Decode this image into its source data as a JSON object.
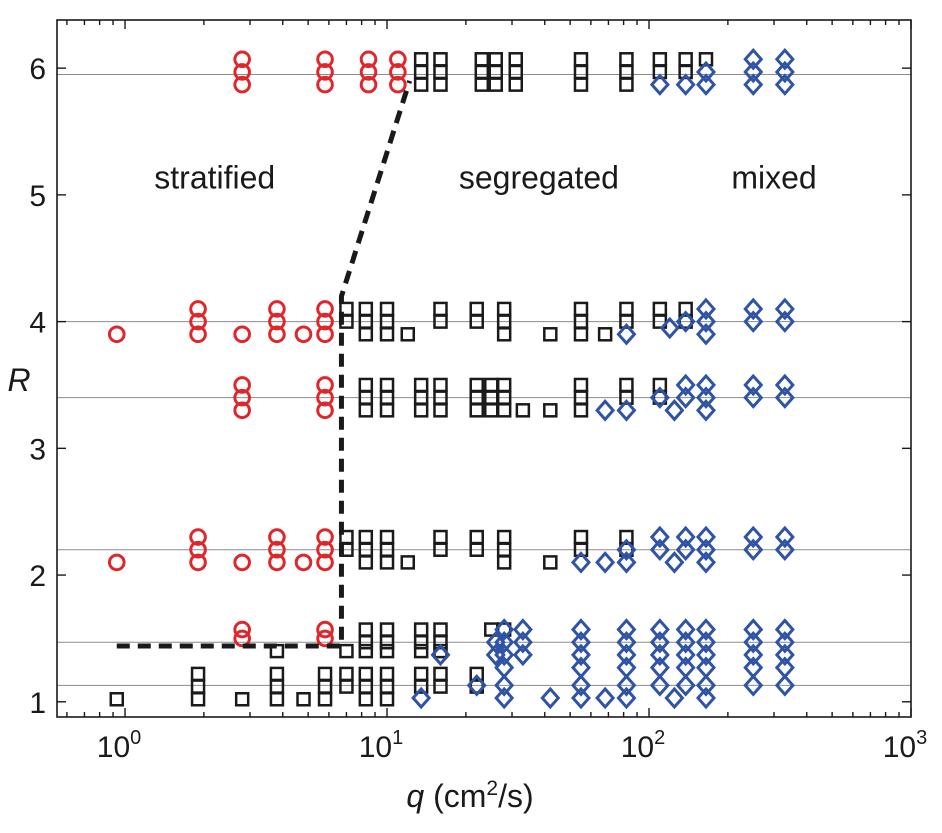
{
  "chart_data": {
    "type": "scatter",
    "x_scale": "log",
    "xlim": [
      0.55,
      1000
    ],
    "ylim": [
      0.88,
      6.38
    ],
    "x_ticks": [
      1,
      10,
      100,
      1000
    ],
    "x_tick_labels": [
      {
        "base": "10",
        "exp": "0"
      },
      {
        "base": "10",
        "exp": "1"
      },
      {
        "base": "10",
        "exp": "2"
      },
      {
        "base": "10",
        "exp": "3"
      }
    ],
    "y_ticks": [
      1,
      2,
      3,
      4,
      5,
      6
    ],
    "y_tick_labels": [
      "1",
      "2",
      "3",
      "4",
      "5",
      "6"
    ],
    "xlabel": {
      "var": "q",
      "unit_open": " (cm",
      "unit_sup": "2",
      "unit_close": "/s)"
    },
    "ylabel": "R",
    "reference_lines_y": [
      1.13,
      1.47,
      2.2,
      3.4,
      4.0,
      5.95
    ],
    "boundary_line": [
      [
        0.93,
        1.44
      ],
      [
        6.3,
        1.44
      ],
      [
        6.7,
        1.44
      ],
      [
        6.7,
        4.2
      ],
      [
        12.2,
        5.9
      ]
    ],
    "colors": {
      "stratified": "#e0262b",
      "segregated": "#1a1a1a",
      "mixed": "#2f53a6"
    },
    "regions": [
      {
        "label": "stratified",
        "x": 2.2,
        "y": 5.05
      },
      {
        "label": "segregated",
        "x": 38,
        "y": 5.05
      },
      {
        "label": "mixed",
        "x": 300,
        "y": 5.05
      }
    ],
    "series": [
      {
        "name": "stratified",
        "marker": "circle",
        "points": [
          [
            2.8,
            6.07
          ],
          [
            2.8,
            5.97
          ],
          [
            2.8,
            5.87
          ],
          [
            5.8,
            6.07
          ],
          [
            5.8,
            5.97
          ],
          [
            5.8,
            5.87
          ],
          [
            8.5,
            6.07
          ],
          [
            8.5,
            5.97
          ],
          [
            8.5,
            5.87
          ],
          [
            11,
            6.07
          ],
          [
            11,
            5.97
          ],
          [
            11,
            5.87
          ],
          [
            0.93,
            3.9
          ],
          [
            1.9,
            4.1
          ],
          [
            1.9,
            4.0
          ],
          [
            1.9,
            3.9
          ],
          [
            2.8,
            3.9
          ],
          [
            3.8,
            4.1
          ],
          [
            3.8,
            4.0
          ],
          [
            3.8,
            3.9
          ],
          [
            4.8,
            3.9
          ],
          [
            5.8,
            4.1
          ],
          [
            5.8,
            4.0
          ],
          [
            5.8,
            3.9
          ],
          [
            2.8,
            3.5
          ],
          [
            2.8,
            3.4
          ],
          [
            2.8,
            3.3
          ],
          [
            5.8,
            3.5
          ],
          [
            5.8,
            3.4
          ],
          [
            5.8,
            3.3
          ],
          [
            0.93,
            2.1
          ],
          [
            1.9,
            2.3
          ],
          [
            1.9,
            2.2
          ],
          [
            1.9,
            2.1
          ],
          [
            2.8,
            2.1
          ],
          [
            3.8,
            2.3
          ],
          [
            3.8,
            2.2
          ],
          [
            3.8,
            2.1
          ],
          [
            4.8,
            2.1
          ],
          [
            5.8,
            2.3
          ],
          [
            5.8,
            2.2
          ],
          [
            5.8,
            2.1
          ],
          [
            2.8,
            1.57
          ],
          [
            2.8,
            1.5
          ],
          [
            5.8,
            1.57
          ],
          [
            5.8,
            1.5
          ]
        ]
      },
      {
        "name": "segregated",
        "marker": "square",
        "points": [
          [
            13.5,
            6.07
          ],
          [
            13.5,
            5.97
          ],
          [
            13.5,
            5.87
          ],
          [
            16,
            6.07
          ],
          [
            16,
            5.97
          ],
          [
            16,
            5.87
          ],
          [
            23,
            6.07
          ],
          [
            23,
            5.97
          ],
          [
            23,
            5.87
          ],
          [
            26,
            6.07
          ],
          [
            26,
            5.97
          ],
          [
            26,
            5.87
          ],
          [
            31,
            6.07
          ],
          [
            31,
            5.97
          ],
          [
            31,
            5.87
          ],
          [
            55,
            6.07
          ],
          [
            55,
            5.97
          ],
          [
            55,
            5.87
          ],
          [
            82,
            6.07
          ],
          [
            82,
            5.97
          ],
          [
            82,
            5.87
          ],
          [
            110,
            6.07
          ],
          [
            110,
            5.97
          ],
          [
            138,
            6.07
          ],
          [
            138,
            5.97
          ],
          [
            165,
            6.07
          ],
          [
            7,
            4.1
          ],
          [
            7,
            4.0
          ],
          [
            8.3,
            4.1
          ],
          [
            8.3,
            4.0
          ],
          [
            8.3,
            3.9
          ],
          [
            10,
            4.1
          ],
          [
            10,
            4.0
          ],
          [
            10,
            3.9
          ],
          [
            12,
            3.9
          ],
          [
            16,
            4.1
          ],
          [
            16,
            4.0
          ],
          [
            22,
            4.1
          ],
          [
            22,
            4.0
          ],
          [
            28,
            4.1
          ],
          [
            28,
            4.0
          ],
          [
            28,
            3.9
          ],
          [
            42,
            3.9
          ],
          [
            55,
            4.1
          ],
          [
            55,
            4.0
          ],
          [
            55,
            3.9
          ],
          [
            68,
            3.9
          ],
          [
            82,
            4.1
          ],
          [
            82,
            4.0
          ],
          [
            110,
            4.1
          ],
          [
            110,
            4.0
          ],
          [
            138,
            4.1
          ],
          [
            138,
            4.0
          ],
          [
            8.3,
            3.5
          ],
          [
            8.3,
            3.4
          ],
          [
            8.3,
            3.3
          ],
          [
            10,
            3.5
          ],
          [
            10,
            3.4
          ],
          [
            10,
            3.3
          ],
          [
            13.5,
            3.5
          ],
          [
            13.5,
            3.4
          ],
          [
            13.5,
            3.3
          ],
          [
            16,
            3.5
          ],
          [
            16,
            3.4
          ],
          [
            16,
            3.3
          ],
          [
            22,
            3.5
          ],
          [
            22,
            3.4
          ],
          [
            22,
            3.3
          ],
          [
            25,
            3.5
          ],
          [
            25,
            3.4
          ],
          [
            25,
            3.3
          ],
          [
            28,
            3.5
          ],
          [
            28,
            3.4
          ],
          [
            28,
            3.3
          ],
          [
            33,
            3.3
          ],
          [
            42,
            3.3
          ],
          [
            55,
            3.5
          ],
          [
            55,
            3.4
          ],
          [
            55,
            3.3
          ],
          [
            82,
            3.5
          ],
          [
            82,
            3.4
          ],
          [
            110,
            3.5
          ],
          [
            110,
            3.4
          ],
          [
            7,
            2.3
          ],
          [
            7,
            2.2
          ],
          [
            8.3,
            2.3
          ],
          [
            8.3,
            2.2
          ],
          [
            8.3,
            2.1
          ],
          [
            10,
            2.3
          ],
          [
            10,
            2.2
          ],
          [
            10,
            2.1
          ],
          [
            12,
            2.1
          ],
          [
            16,
            2.3
          ],
          [
            16,
            2.2
          ],
          [
            22,
            2.3
          ],
          [
            22,
            2.2
          ],
          [
            28,
            2.3
          ],
          [
            28,
            2.2
          ],
          [
            28,
            2.1
          ],
          [
            42,
            2.1
          ],
          [
            55,
            2.3
          ],
          [
            55,
            2.2
          ],
          [
            82,
            2.3
          ],
          [
            82,
            2.2
          ],
          [
            3.8,
            1.4
          ],
          [
            7,
            1.4
          ],
          [
            8.3,
            1.57
          ],
          [
            8.3,
            1.47
          ],
          [
            8.3,
            1.4
          ],
          [
            10,
            1.57
          ],
          [
            10,
            1.47
          ],
          [
            10,
            1.4
          ],
          [
            13.5,
            1.57
          ],
          [
            13.5,
            1.47
          ],
          [
            13.5,
            1.4
          ],
          [
            16,
            1.57
          ],
          [
            16,
            1.47
          ],
          [
            16,
            1.4
          ],
          [
            25,
            1.57
          ],
          [
            28,
            1.57
          ],
          [
            0.93,
            1.02
          ],
          [
            1.9,
            1.22
          ],
          [
            1.9,
            1.12
          ],
          [
            1.9,
            1.02
          ],
          [
            2.8,
            1.02
          ],
          [
            3.8,
            1.22
          ],
          [
            3.8,
            1.12
          ],
          [
            3.8,
            1.02
          ],
          [
            4.8,
            1.02
          ],
          [
            5.8,
            1.22
          ],
          [
            5.8,
            1.12
          ],
          [
            5.8,
            1.02
          ],
          [
            7,
            1.22
          ],
          [
            7,
            1.12
          ],
          [
            8.3,
            1.22
          ],
          [
            8.3,
            1.12
          ],
          [
            8.3,
            1.02
          ],
          [
            10,
            1.22
          ],
          [
            10,
            1.12
          ],
          [
            10,
            1.02
          ],
          [
            13.5,
            1.22
          ],
          [
            13.5,
            1.12
          ],
          [
            16,
            1.22
          ],
          [
            16,
            1.12
          ],
          [
            22,
            1.22
          ],
          [
            22,
            1.12
          ]
        ]
      },
      {
        "name": "mixed",
        "marker": "diamond",
        "points": [
          [
            110,
            5.87
          ],
          [
            138,
            5.87
          ],
          [
            165,
            5.97
          ],
          [
            165,
            5.87
          ],
          [
            250,
            6.07
          ],
          [
            250,
            5.97
          ],
          [
            250,
            5.87
          ],
          [
            330,
            6.07
          ],
          [
            330,
            5.97
          ],
          [
            330,
            5.87
          ],
          [
            82,
            3.9
          ],
          [
            120,
            3.95
          ],
          [
            138,
            4.0
          ],
          [
            165,
            4.1
          ],
          [
            165,
            4.0
          ],
          [
            165,
            3.9
          ],
          [
            250,
            4.1
          ],
          [
            250,
            4.0
          ],
          [
            330,
            4.1
          ],
          [
            330,
            4.0
          ],
          [
            68,
            3.3
          ],
          [
            82,
            3.3
          ],
          [
            110,
            3.4
          ],
          [
            125,
            3.3
          ],
          [
            138,
            3.5
          ],
          [
            138,
            3.4
          ],
          [
            165,
            3.5
          ],
          [
            165,
            3.4
          ],
          [
            165,
            3.3
          ],
          [
            250,
            3.5
          ],
          [
            250,
            3.4
          ],
          [
            330,
            3.5
          ],
          [
            330,
            3.4
          ],
          [
            55,
            2.1
          ],
          [
            68,
            2.1
          ],
          [
            82,
            2.2
          ],
          [
            82,
            2.1
          ],
          [
            110,
            2.3
          ],
          [
            110,
            2.2
          ],
          [
            125,
            2.1
          ],
          [
            138,
            2.3
          ],
          [
            138,
            2.2
          ],
          [
            165,
            2.3
          ],
          [
            165,
            2.2
          ],
          [
            165,
            2.1
          ],
          [
            250,
            2.3
          ],
          [
            250,
            2.2
          ],
          [
            330,
            2.3
          ],
          [
            330,
            2.2
          ],
          [
            28,
            1.57
          ],
          [
            33,
            1.57
          ],
          [
            26,
            1.47
          ],
          [
            28,
            1.47
          ],
          [
            33,
            1.47
          ],
          [
            16,
            1.37
          ],
          [
            26,
            1.37
          ],
          [
            28,
            1.37
          ],
          [
            33,
            1.37
          ],
          [
            55,
            1.57
          ],
          [
            55,
            1.47
          ],
          [
            55,
            1.37
          ],
          [
            82,
            1.57
          ],
          [
            82,
            1.47
          ],
          [
            82,
            1.37
          ],
          [
            110,
            1.57
          ],
          [
            110,
            1.47
          ],
          [
            110,
            1.37
          ],
          [
            138,
            1.57
          ],
          [
            138,
            1.47
          ],
          [
            138,
            1.37
          ],
          [
            165,
            1.57
          ],
          [
            165,
            1.47
          ],
          [
            165,
            1.37
          ],
          [
            250,
            1.57
          ],
          [
            250,
            1.47
          ],
          [
            250,
            1.37
          ],
          [
            330,
            1.57
          ],
          [
            330,
            1.47
          ],
          [
            330,
            1.37
          ],
          [
            28,
            1.27
          ],
          [
            55,
            1.27
          ],
          [
            82,
            1.27
          ],
          [
            110,
            1.27
          ],
          [
            138,
            1.27
          ],
          [
            165,
            1.27
          ],
          [
            250,
            1.27
          ],
          [
            330,
            1.27
          ],
          [
            22,
            1.13
          ],
          [
            28,
            1.13
          ],
          [
            55,
            1.13
          ],
          [
            82,
            1.13
          ],
          [
            110,
            1.13
          ],
          [
            138,
            1.13
          ],
          [
            165,
            1.13
          ],
          [
            250,
            1.13
          ],
          [
            330,
            1.13
          ],
          [
            13.5,
            1.03
          ],
          [
            28,
            1.03
          ],
          [
            42,
            1.03
          ],
          [
            55,
            1.03
          ],
          [
            68,
            1.03
          ],
          [
            82,
            1.03
          ],
          [
            125,
            1.03
          ],
          [
            165,
            1.03
          ]
        ]
      }
    ]
  }
}
